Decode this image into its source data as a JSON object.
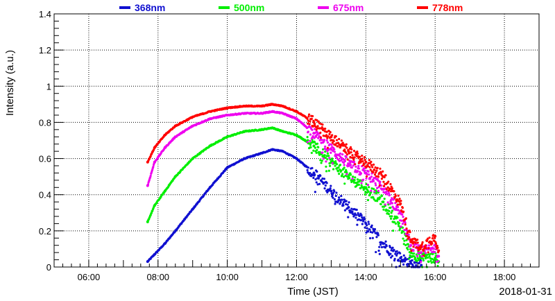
{
  "chart_data": {
    "type": "scatter",
    "title": "",
    "xlabel": "Time (JST)",
    "ylabel": "Intensity (a.u.)",
    "date_label": "2018-01-31",
    "x_unit": "hours",
    "xlim": [
      5,
      19.0
    ],
    "ylim": [
      0,
      1.4
    ],
    "x_ticks": [
      {
        "value": 6,
        "label": "06:00"
      },
      {
        "value": 8,
        "label": "08:00"
      },
      {
        "value": 10,
        "label": "10:00"
      },
      {
        "value": 12,
        "label": "12:00"
      },
      {
        "value": 14,
        "label": "14:00"
      },
      {
        "value": 16,
        "label": "16:00"
      },
      {
        "value": 18,
        "label": "18:00"
      }
    ],
    "y_ticks": [
      {
        "value": 0,
        "label": "0"
      },
      {
        "value": 0.2,
        "label": "0.2"
      },
      {
        "value": 0.4,
        "label": "0.4"
      },
      {
        "value": 0.6,
        "label": "0.6"
      },
      {
        "value": 0.8,
        "label": "0.8"
      },
      {
        "value": 1.0,
        "label": "1"
      },
      {
        "value": 1.2,
        "label": "1.2"
      },
      {
        "value": 1.4,
        "label": "1.4"
      }
    ],
    "grid": true,
    "legend_position": "top",
    "series": [
      {
        "name": "368nm",
        "color": "#1010d0",
        "x": [
          7.7,
          7.9,
          8.2,
          8.5,
          9.0,
          9.5,
          10.0,
          10.5,
          11.0,
          11.3,
          11.6,
          12.0,
          12.5,
          13.0,
          13.5,
          14.0,
          14.5,
          15.0,
          15.3,
          15.6
        ],
        "y": [
          0.03,
          0.07,
          0.13,
          0.2,
          0.32,
          0.44,
          0.55,
          0.6,
          0.63,
          0.65,
          0.64,
          0.6,
          0.52,
          0.42,
          0.33,
          0.24,
          0.13,
          0.05,
          0.02,
          0.01
        ]
      },
      {
        "name": "500nm",
        "color": "#00ee00",
        "x": [
          7.7,
          7.9,
          8.2,
          8.5,
          9.0,
          9.5,
          10.0,
          10.5,
          11.0,
          11.3,
          11.6,
          12.0,
          12.5,
          13.0,
          13.5,
          14.0,
          14.5,
          15.0,
          15.3,
          15.6,
          16.0,
          16.1
        ],
        "y": [
          0.25,
          0.34,
          0.42,
          0.5,
          0.6,
          0.67,
          0.72,
          0.75,
          0.76,
          0.77,
          0.75,
          0.73,
          0.67,
          0.58,
          0.5,
          0.44,
          0.36,
          0.22,
          0.08,
          0.05,
          0.05,
          0.03
        ]
      },
      {
        "name": "675nm",
        "color": "#ee00ee",
        "x": [
          7.7,
          7.9,
          8.2,
          8.5,
          9.0,
          9.5,
          10.0,
          10.5,
          11.0,
          11.3,
          11.6,
          12.0,
          12.5,
          13.0,
          13.5,
          14.0,
          14.5,
          15.0,
          15.3,
          15.6,
          16.0,
          16.1
        ],
        "y": [
          0.45,
          0.58,
          0.66,
          0.72,
          0.78,
          0.82,
          0.84,
          0.85,
          0.85,
          0.86,
          0.85,
          0.82,
          0.74,
          0.65,
          0.57,
          0.52,
          0.43,
          0.3,
          0.12,
          0.08,
          0.12,
          0.06
        ]
      },
      {
        "name": "778nm",
        "color": "#ff0000",
        "x": [
          7.7,
          7.9,
          8.2,
          8.5,
          9.0,
          9.5,
          10.0,
          10.5,
          11.0,
          11.3,
          11.6,
          12.0,
          12.5,
          13.0,
          13.5,
          14.0,
          14.5,
          15.0,
          15.3,
          15.6,
          16.0,
          16.1
        ],
        "y": [
          0.58,
          0.66,
          0.73,
          0.78,
          0.83,
          0.86,
          0.88,
          0.89,
          0.89,
          0.9,
          0.89,
          0.86,
          0.8,
          0.72,
          0.64,
          0.58,
          0.5,
          0.35,
          0.15,
          0.11,
          0.17,
          0.09
        ]
      }
    ]
  }
}
